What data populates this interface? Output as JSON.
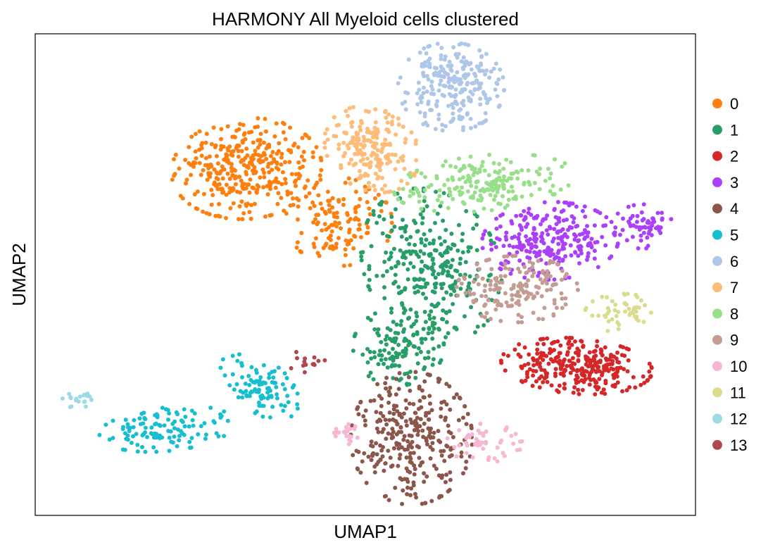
{
  "chart_data": {
    "type": "scatter",
    "title": "HARMONY All Myeloid cells clustered",
    "xlabel": "UMAP1",
    "ylabel": "UMAP2",
    "xlim": [
      0,
      100
    ],
    "ylim": [
      0,
      100
    ],
    "grid": false,
    "ticks": false,
    "legend_position": "right",
    "point_radius": 3,
    "seed": 7,
    "series": [
      {
        "name": "0",
        "color": "#ff7f0e",
        "n": 430,
        "regions": [
          [
            32,
            72,
            10,
            9,
            0.35,
            0.8
          ],
          [
            46,
            61,
            7,
            8,
            0.1,
            0.3
          ]
        ]
      },
      {
        "name": "1",
        "color": "#279e68",
        "n": 430,
        "regions": [
          [
            60,
            52,
            9,
            14,
            0.2,
            0.7
          ],
          [
            55,
            35,
            6,
            7,
            0,
            0.3
          ]
        ]
      },
      {
        "name": "2",
        "color": "#d62728",
        "n": 300,
        "regions": [
          [
            82,
            31,
            10,
            5,
            -0.12,
            1
          ]
        ]
      },
      {
        "name": "3",
        "color": "#aa40fc",
        "n": 330,
        "regions": [
          [
            78,
            57,
            9,
            7,
            0.1,
            0.8
          ],
          [
            92,
            60,
            4,
            4,
            0,
            0.2
          ]
        ]
      },
      {
        "name": "4",
        "color": "#8c564b",
        "n": 310,
        "regions": [
          [
            57,
            16,
            8,
            12,
            0,
            1
          ]
        ]
      },
      {
        "name": "5",
        "color": "#17becf",
        "n": 210,
        "regions": [
          [
            20,
            18,
            9,
            4,
            0.15,
            0.55
          ],
          [
            34,
            27,
            4,
            7,
            0.6,
            0.45
          ]
        ]
      },
      {
        "name": "6",
        "color": "#aec7e8",
        "n": 250,
        "regions": [
          [
            63,
            89,
            7,
            8,
            0.05,
            1
          ]
        ]
      },
      {
        "name": "7",
        "color": "#ffbb78",
        "n": 200,
        "regions": [
          [
            51,
            76,
            6,
            8,
            0.35,
            1
          ]
        ]
      },
      {
        "name": "8",
        "color": "#98df8a",
        "n": 190,
        "regions": [
          [
            68,
            69,
            12,
            5,
            0.15,
            1
          ]
        ]
      },
      {
        "name": "9",
        "color": "#c49c94",
        "n": 170,
        "regions": [
          [
            73,
            47,
            8,
            6,
            0,
            1
          ]
        ]
      },
      {
        "name": "10",
        "color": "#f7b6d2",
        "n": 70,
        "regions": [
          [
            68,
            15,
            5,
            3.5,
            0,
            0.7
          ],
          [
            47,
            17,
            2.5,
            2,
            0,
            0.3
          ]
        ]
      },
      {
        "name": "11",
        "color": "#dbdb8d",
        "n": 50,
        "regions": [
          [
            89,
            42,
            5,
            3.5,
            0,
            1
          ]
        ]
      },
      {
        "name": "12",
        "color": "#9edae5",
        "n": 20,
        "regions": [
          [
            7,
            24,
            2.5,
            1.8,
            0,
            1
          ]
        ]
      },
      {
        "name": "13",
        "color": "#ad494a",
        "n": 14,
        "regions": [
          [
            41,
            32,
            2.5,
            2,
            0,
            1
          ]
        ]
      }
    ]
  }
}
